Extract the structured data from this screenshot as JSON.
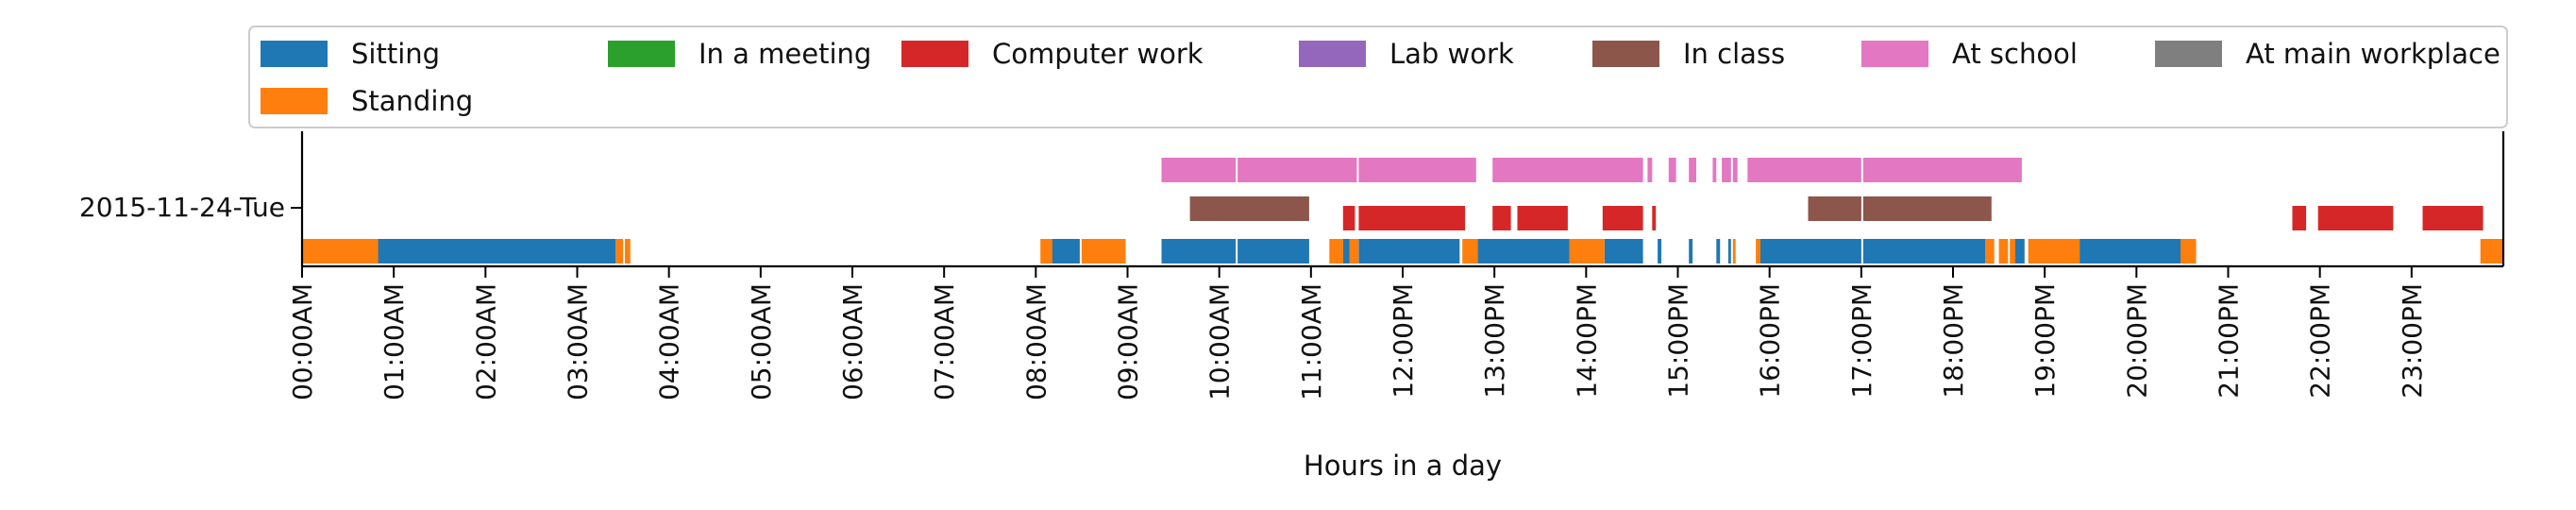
{
  "chart_data": {
    "type": "timeline",
    "xlabel": "Hours in a day",
    "ylabel": "",
    "row_label": "2015-11-24-Tue",
    "xlim_hours": [
      0,
      24
    ],
    "x_ticks": [
      "00:00AM",
      "01:00AM",
      "02:00AM",
      "03:00AM",
      "04:00AM",
      "05:00AM",
      "06:00AM",
      "07:00AM",
      "08:00AM",
      "09:00AM",
      "10:00AM",
      "11:00AM",
      "12:00PM",
      "13:00PM",
      "14:00PM",
      "15:00PM",
      "16:00PM",
      "17:00PM",
      "18:00PM",
      "19:00PM",
      "20:00PM",
      "21:00PM",
      "22:00PM",
      "23:00PM"
    ],
    "legend": {
      "placement": "top",
      "ncols": 7,
      "entries": [
        {
          "name": "Sitting",
          "color": "#1f77b4"
        },
        {
          "name": "In a meeting",
          "color": "#2ca02c"
        },
        {
          "name": "Computer work",
          "color": "#d62728"
        },
        {
          "name": "Lab work",
          "color": "#9467bd"
        },
        {
          "name": "In class",
          "color": "#8c564b"
        },
        {
          "name": "At school",
          "color": "#e377c2"
        },
        {
          "name": "At main workplace",
          "color": "#7f7f7f"
        },
        {
          "name": "Standing",
          "color": "#ff7f0e"
        }
      ]
    },
    "lanes": [
      {
        "name": "At school",
        "color": "#e377c2",
        "lane": 0,
        "intervals": [
          [
            9.37,
            10.18
          ],
          [
            10.2,
            11.5
          ],
          [
            11.52,
            12.8
          ],
          [
            12.98,
            14.62
          ],
          [
            14.67,
            14.72
          ],
          [
            14.9,
            14.98
          ],
          [
            15.12,
            15.2
          ],
          [
            15.38,
            15.42
          ],
          [
            15.48,
            15.58
          ],
          [
            15.6,
            15.65
          ],
          [
            15.76,
            17.0
          ],
          [
            17.02,
            18.75
          ]
        ]
      },
      {
        "name": "In class",
        "color": "#8c564b",
        "lane": 1,
        "intervals": [
          [
            9.68,
            10.98
          ],
          [
            16.42,
            17.0
          ],
          [
            17.02,
            18.42
          ]
        ]
      },
      {
        "name": "Computer work",
        "color": "#d62728",
        "lane": 2,
        "intervals": [
          [
            11.35,
            11.48
          ],
          [
            11.52,
            12.68
          ],
          [
            12.98,
            13.18
          ],
          [
            13.25,
            13.8
          ],
          [
            14.18,
            14.62
          ],
          [
            14.72,
            14.76
          ],
          [
            21.7,
            21.85
          ],
          [
            21.98,
            22.8
          ],
          [
            23.12,
            23.78
          ]
        ]
      },
      {
        "name": "Sitting",
        "color": "#1f77b4",
        "lane": 3,
        "intervals": [
          [
            0.8,
            3.42
          ],
          [
            8.1,
            8.48
          ],
          [
            9.37,
            10.18
          ],
          [
            10.2,
            10.98
          ],
          [
            11.35,
            11.43
          ],
          [
            11.52,
            12.62
          ],
          [
            12.8,
            13.82
          ],
          [
            14.2,
            14.62
          ],
          [
            14.78,
            14.82
          ],
          [
            15.12,
            15.16
          ],
          [
            15.42,
            15.46
          ],
          [
            15.55,
            15.58
          ],
          [
            15.9,
            17.0
          ],
          [
            17.02,
            18.42
          ],
          [
            18.65,
            18.78
          ],
          [
            19.38,
            20.5
          ]
        ]
      },
      {
        "name": "Standing",
        "color": "#ff7f0e",
        "lane": 3,
        "intervals": [
          [
            0.0,
            0.83
          ],
          [
            3.42,
            3.5
          ],
          [
            3.52,
            3.58
          ],
          [
            8.05,
            8.18
          ],
          [
            8.5,
            8.98
          ],
          [
            11.2,
            11.35
          ],
          [
            11.42,
            11.52
          ],
          [
            12.65,
            12.82
          ],
          [
            13.82,
            14.2
          ],
          [
            15.6,
            15.63
          ],
          [
            15.85,
            15.9
          ],
          [
            18.35,
            18.45
          ],
          [
            18.5,
            18.6
          ],
          [
            18.62,
            18.68
          ],
          [
            18.82,
            19.38
          ],
          [
            20.48,
            20.65
          ],
          [
            23.75,
            24.0
          ]
        ]
      }
    ]
  }
}
